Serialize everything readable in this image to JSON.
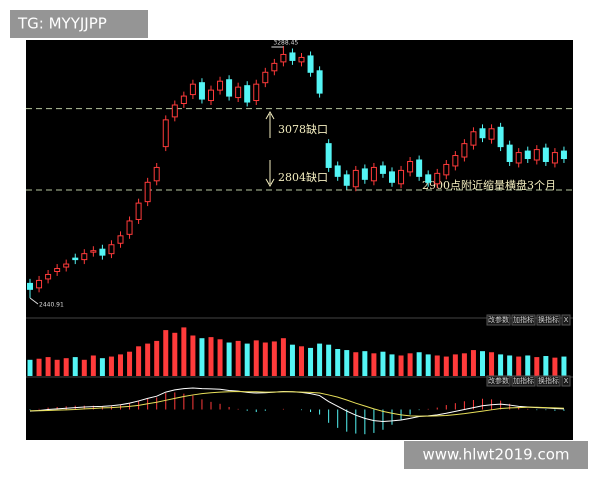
{
  "watermark": "TG: MYYJJPP",
  "website": "www.hlwt2019.com",
  "chart_data": {
    "type": "candlestick",
    "open": [
      2490,
      2475,
      2505,
      2530,
      2545,
      2575,
      2570,
      2595,
      2605,
      2590,
      2625,
      2655,
      2705,
      2765,
      2835,
      2950,
      3050,
      3095,
      3125,
      3165,
      3105,
      3140,
      3175,
      3115,
      3155,
      3105,
      3165,
      3205,
      3235,
      3265,
      3235,
      3255,
      3205,
      2960,
      2885,
      2855,
      2815,
      2875,
      2835,
      2885,
      2865,
      2825,
      2865,
      2905,
      2855,
      2825,
      2855,
      2885,
      2915,
      2955,
      3010,
      2975,
      3015,
      2955,
      2895,
      2935,
      2905,
      2945,
      2895,
      2935
    ],
    "high": [
      2505,
      2515,
      2535,
      2555,
      2570,
      2590,
      2605,
      2615,
      2620,
      2635,
      2665,
      2715,
      2775,
      2845,
      2895,
      3055,
      3105,
      3135,
      3175,
      3180,
      3155,
      3185,
      3190,
      3165,
      3170,
      3175,
      3215,
      3245,
      3288.45,
      3280,
      3265,
      3270,
      3220,
      2975,
      2900,
      2870,
      2885,
      2890,
      2895,
      2900,
      2880,
      2885,
      2915,
      2920,
      2870,
      2875,
      2905,
      2935,
      2975,
      3015,
      3025,
      3025,
      3030,
      2970,
      2945,
      2950,
      2955,
      2960,
      2945,
      2950
    ],
    "low": [
      2440.91,
      2460,
      2490,
      2515,
      2530,
      2555,
      2555,
      2580,
      2570,
      2575,
      2610,
      2640,
      2690,
      2750,
      2820,
      2935,
      3035,
      3080,
      3110,
      3095,
      3090,
      3125,
      3105,
      3100,
      3085,
      3090,
      3150,
      3190,
      3220,
      3225,
      3220,
      3185,
      3115,
      2865,
      2835,
      2805,
      2800,
      2825,
      2820,
      2845,
      2815,
      2810,
      2850,
      2835,
      2815,
      2810,
      2840,
      2870,
      2900,
      2940,
      2965,
      2960,
      2935,
      2885,
      2880,
      2895,
      2890,
      2885,
      2880,
      2895
    ],
    "close": [
      2470,
      2500,
      2520,
      2540,
      2555,
      2570,
      2590,
      2600,
      2585,
      2620,
      2650,
      2700,
      2760,
      2830,
      2880,
      3040,
      3090,
      3120,
      3160,
      3110,
      3140,
      3170,
      3120,
      3150,
      3100,
      3160,
      3200,
      3230,
      3260,
      3240,
      3250,
      3200,
      3130,
      2880,
      2850,
      2820,
      2870,
      2840,
      2880,
      2860,
      2830,
      2870,
      2900,
      2850,
      2830,
      2860,
      2890,
      2920,
      2960,
      3000,
      2980,
      3010,
      2950,
      2900,
      2930,
      2910,
      2940,
      2900,
      2930,
      2910
    ],
    "up_color": "#ff3b3b",
    "down_color": "#54f5f5",
    "ylim": [
      2383.7,
      3308.6
    ],
    "gaps": [
      {
        "value": 3078,
        "label": "3078缺口"
      },
      {
        "value": 2804,
        "label": "2804缺口"
      }
    ],
    "annotation": "2900点附近缩量横盘3个月",
    "volume": {
      "values": [
        30,
        32,
        35,
        30,
        33,
        35,
        30,
        38,
        33,
        36,
        40,
        45,
        55,
        60,
        65,
        85,
        80,
        90,
        75,
        70,
        72,
        68,
        62,
        65,
        60,
        66,
        62,
        64,
        70,
        58,
        55,
        52,
        60,
        58,
        50,
        48,
        44,
        46,
        42,
        45,
        40,
        38,
        42,
        44,
        40,
        38,
        36,
        40,
        42,
        48,
        46,
        44,
        40,
        38,
        36,
        38,
        35,
        37,
        34,
        36
      ],
      "ylim": [
        0,
        100
      ]
    },
    "macd": {
      "dif": [
        -5,
        -3,
        0,
        2,
        4,
        6,
        8,
        9,
        10,
        12,
        15,
        20,
        27,
        35,
        42,
        55,
        62,
        66,
        68,
        66,
        65,
        64,
        60,
        58,
        54,
        52,
        53,
        55,
        57,
        56,
        54,
        50,
        44,
        25,
        10,
        -5,
        -18,
        -28,
        -35,
        -38,
        -36,
        -33,
        -28,
        -22,
        -20,
        -17,
        -12,
        -6,
        0,
        6,
        12,
        15,
        17,
        14,
        10,
        8,
        6,
        5,
        3,
        2
      ],
      "dea": [
        -4,
        -4,
        -3,
        -2,
        -1,
        0,
        2,
        3,
        5,
        6,
        8,
        10,
        13,
        18,
        23,
        29,
        35,
        41,
        46,
        50,
        53,
        55,
        56,
        57,
        56,
        56,
        55,
        55,
        56,
        56,
        55,
        54,
        52,
        46,
        39,
        30,
        20,
        11,
        2,
        -6,
        -12,
        -17,
        -20,
        -21,
        -21,
        -20,
        -19,
        -16,
        -13,
        -9,
        -5,
        -1,
        3,
        5,
        6,
        7,
        7,
        6,
        5,
        4
      ],
      "hist": [
        -2,
        2,
        6,
        8,
        10,
        12,
        12,
        12,
        10,
        12,
        14,
        20,
        28,
        34,
        38,
        52,
        54,
        50,
        44,
        32,
        24,
        18,
        8,
        2,
        -4,
        -8,
        -4,
        0,
        2,
        0,
        -2,
        -8,
        -16,
        -42,
        -58,
        -70,
        -76,
        -78,
        -74,
        -64,
        -48,
        -32,
        -16,
        -2,
        2,
        6,
        14,
        20,
        26,
        30,
        34,
        32,
        28,
        18,
        8,
        2,
        -2,
        -2,
        -4,
        -4
      ],
      "dif_color": "#ffffff",
      "dea_color": "#e8e05a",
      "ylim": [
        -90,
        90
      ]
    },
    "panel_buttons": [
      [
        "改参数",
        "加指标",
        "换指标",
        "X"
      ],
      [
        "改参数",
        "加指标",
        "换指标",
        "X"
      ]
    ]
  }
}
